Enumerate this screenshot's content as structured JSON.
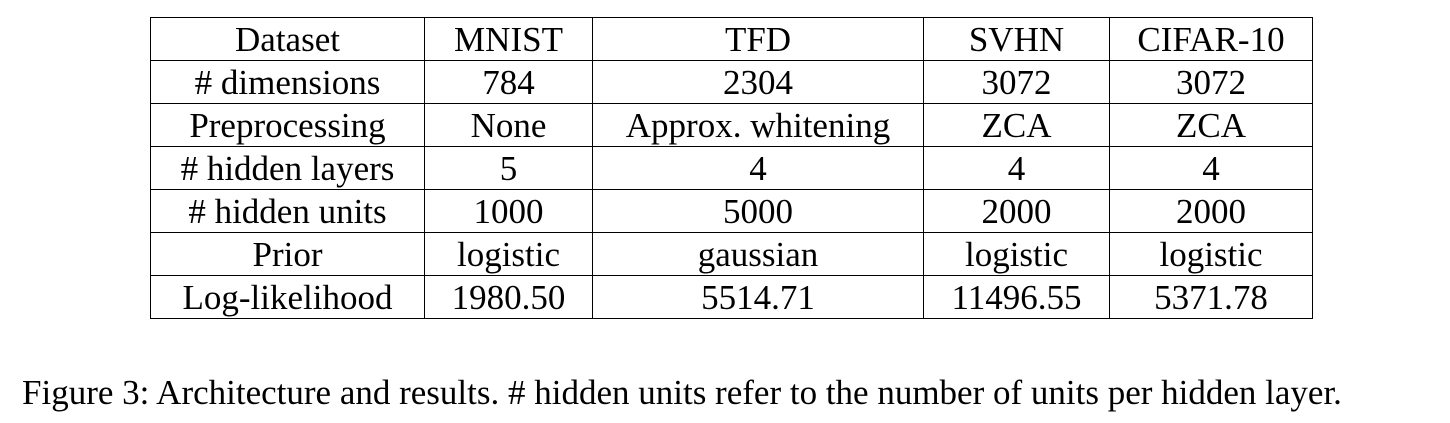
{
  "table": {
    "rows": [
      {
        "label": "Dataset",
        "cells": [
          "MNIST",
          "TFD",
          "SVHN",
          "CIFAR-10"
        ]
      },
      {
        "label": "# dimensions",
        "cells": [
          "784",
          "2304",
          "3072",
          "3072"
        ]
      },
      {
        "label": "Preprocessing",
        "cells": [
          "None",
          "Approx. whitening",
          "ZCA",
          "ZCA"
        ]
      },
      {
        "label": "# hidden layers",
        "cells": [
          "5",
          "4",
          "4",
          "4"
        ]
      },
      {
        "label": "# hidden units",
        "cells": [
          "1000",
          "5000",
          "2000",
          "2000"
        ]
      },
      {
        "label": "Prior",
        "cells": [
          "logistic",
          "gaussian",
          "logistic",
          "logistic"
        ]
      },
      {
        "label": "Log-likelihood",
        "cells": [
          "1980.50",
          "5514.71",
          "11496.55",
          "5371.78"
        ]
      }
    ]
  },
  "caption": "Figure 3: Architecture and results. # hidden units refer to the number of units per hidden layer."
}
